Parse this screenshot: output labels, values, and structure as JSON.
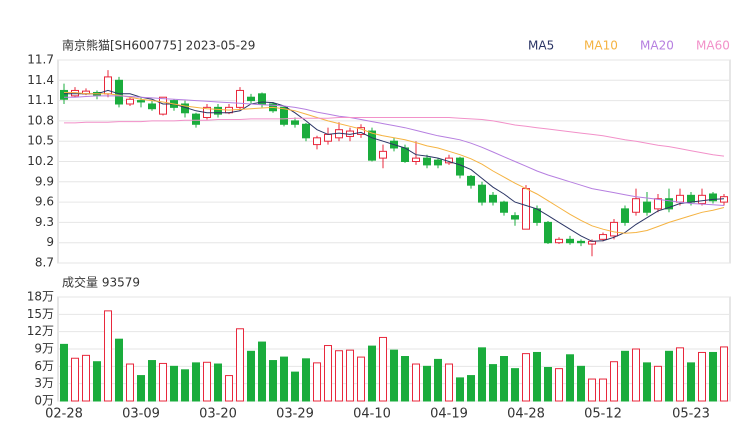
{
  "chart_data": [
    {
      "type": "candlestick",
      "title": "南京熊猫[SH600775] 2023-05-29",
      "up_color": "#e8283c",
      "down_color": "#1aac3c",
      "grid": true,
      "categories": [
        "02-28",
        null,
        null,
        null,
        null,
        null,
        null,
        "03-09",
        null,
        null,
        null,
        null,
        null,
        null,
        "03-20",
        null,
        null,
        null,
        null,
        null,
        null,
        "03-29",
        null,
        null,
        null,
        null,
        null,
        null,
        "04-10",
        null,
        null,
        null,
        null,
        null,
        null,
        "04-19",
        null,
        null,
        null,
        null,
        null,
        null,
        "04-28",
        null,
        null,
        null,
        null,
        null,
        null,
        "05-12",
        null,
        null,
        null,
        null,
        null,
        null,
        null,
        "05-23",
        null,
        null,
        null
      ],
      "open": [
        11.25,
        11.17,
        11.2,
        11.22,
        11.2,
        11.4,
        11.05,
        11.1,
        11.05,
        10.9,
        11.1,
        11.05,
        10.9,
        10.85,
        11.0,
        10.92,
        11.0,
        11.15,
        11.2,
        11.05,
        11.0,
        10.8,
        10.75,
        10.45,
        10.5,
        10.55,
        10.57,
        10.6,
        10.65,
        10.25,
        10.5,
        10.4,
        10.2,
        10.25,
        10.22,
        10.18,
        10.25,
        9.98,
        9.85,
        9.7,
        9.6,
        9.4,
        9.2,
        9.5,
        9.3,
        9.0,
        9.05,
        9.02,
        8.98,
        9.05,
        9.1,
        9.5,
        9.45,
        9.6,
        9.5,
        9.65,
        9.6,
        9.7,
        9.58,
        9.72,
        9.6
      ],
      "high": [
        11.35,
        11.3,
        11.28,
        11.25,
        11.55,
        11.45,
        11.15,
        11.15,
        11.1,
        11.15,
        11.12,
        11.1,
        10.92,
        11.05,
        11.05,
        11.05,
        11.3,
        11.2,
        11.22,
        11.08,
        11.02,
        10.85,
        10.77,
        10.58,
        10.7,
        10.78,
        10.7,
        10.75,
        10.7,
        10.45,
        10.55,
        10.45,
        10.5,
        10.3,
        10.25,
        10.3,
        10.27,
        10.0,
        9.9,
        9.75,
        9.62,
        9.45,
        9.85,
        9.55,
        9.32,
        9.08,
        9.1,
        9.05,
        9.05,
        9.15,
        9.35,
        9.55,
        9.8,
        9.75,
        9.72,
        9.8,
        9.8,
        9.75,
        9.8,
        9.75,
        9.72
      ],
      "low": [
        11.05,
        11.15,
        11.18,
        11.12,
        11.15,
        11.0,
        11.02,
        11.0,
        10.95,
        10.88,
        10.95,
        10.85,
        10.7,
        10.82,
        10.85,
        10.9,
        10.95,
        11.05,
        11.0,
        10.92,
        10.72,
        10.7,
        10.5,
        10.38,
        10.45,
        10.5,
        10.5,
        10.55,
        10.2,
        10.1,
        10.35,
        10.18,
        10.15,
        10.1,
        10.1,
        10.15,
        9.95,
        9.8,
        9.55,
        9.55,
        9.4,
        9.25,
        9.2,
        9.25,
        8.98,
        8.98,
        8.97,
        8.95,
        8.8,
        9.02,
        9.05,
        9.25,
        9.4,
        9.4,
        9.45,
        9.45,
        9.55,
        9.55,
        9.55,
        9.58,
        9.55
      ],
      "close": [
        11.12,
        11.25,
        11.24,
        11.18,
        11.45,
        11.05,
        11.12,
        11.08,
        10.98,
        11.15,
        11.0,
        10.92,
        10.75,
        11.0,
        10.9,
        11.0,
        11.25,
        11.1,
        11.05,
        10.95,
        10.75,
        10.75,
        10.55,
        10.55,
        10.6,
        10.67,
        10.65,
        10.7,
        10.22,
        10.35,
        10.4,
        10.2,
        10.25,
        10.15,
        10.15,
        10.25,
        10.0,
        9.85,
        9.6,
        9.6,
        9.45,
        9.35,
        9.8,
        9.3,
        9.0,
        9.05,
        9.0,
        9.0,
        9.02,
        9.12,
        9.3,
        9.3,
        9.65,
        9.45,
        9.65,
        9.5,
        9.7,
        9.6,
        9.7,
        9.62,
        9.68
      ],
      "series": [
        {
          "name": "MA5",
          "color": "#2b3565",
          "values": [
            11.2,
            11.2,
            11.2,
            11.2,
            11.25,
            11.2,
            11.2,
            11.15,
            11.12,
            11.05,
            11.05,
            11.0,
            10.95,
            10.92,
            10.92,
            10.92,
            10.95,
            11.05,
            11.08,
            11.07,
            11.02,
            10.92,
            10.8,
            10.67,
            10.6,
            10.62,
            10.6,
            10.63,
            10.55,
            10.5,
            10.45,
            10.4,
            10.3,
            10.28,
            10.25,
            10.2,
            10.15,
            10.08,
            9.95,
            9.82,
            9.72,
            9.6,
            9.55,
            9.5,
            9.4,
            9.3,
            9.2,
            9.1,
            9.02,
            9.03,
            9.08,
            9.15,
            9.27,
            9.37,
            9.47,
            9.52,
            9.58,
            9.6,
            9.62,
            9.64,
            9.65
          ]
        },
        {
          "name": "MA10",
          "color": "#f5b342",
          "values": [
            11.22,
            11.22,
            11.2,
            11.2,
            11.2,
            11.18,
            11.15,
            11.12,
            11.1,
            11.08,
            11.05,
            11.02,
            11.0,
            10.98,
            10.97,
            10.96,
            10.97,
            10.98,
            10.99,
            11.0,
            10.98,
            10.95,
            10.9,
            10.85,
            10.8,
            10.76,
            10.72,
            10.68,
            10.62,
            10.58,
            10.55,
            10.52,
            10.48,
            10.43,
            10.4,
            10.35,
            10.3,
            10.24,
            10.16,
            10.06,
            9.97,
            9.88,
            9.8,
            9.72,
            9.62,
            9.52,
            9.42,
            9.33,
            9.25,
            9.2,
            9.16,
            9.14,
            9.15,
            9.18,
            9.24,
            9.3,
            9.35,
            9.4,
            9.45,
            9.48,
            9.52
          ]
        },
        {
          "name": "MA20",
          "color": "#b67fe0",
          "values": [
            11.15,
            11.15,
            11.16,
            11.17,
            11.17,
            11.17,
            11.16,
            11.15,
            11.14,
            11.13,
            11.12,
            11.11,
            11.1,
            11.09,
            11.08,
            11.07,
            11.06,
            11.05,
            11.04,
            11.03,
            11.02,
            11.0,
            10.97,
            10.93,
            10.9,
            10.87,
            10.85,
            10.82,
            10.79,
            10.76,
            10.73,
            10.7,
            10.66,
            10.62,
            10.58,
            10.55,
            10.52,
            10.47,
            10.41,
            10.34,
            10.27,
            10.2,
            10.13,
            10.06,
            10.0,
            9.95,
            9.9,
            9.85,
            9.8,
            9.77,
            9.74,
            9.71,
            9.68,
            9.66,
            9.64,
            9.62,
            9.6,
            9.58,
            9.57,
            9.56,
            9.55
          ]
        },
        {
          "name": "MA60",
          "color": "#f291c9",
          "values": [
            10.77,
            10.77,
            10.78,
            10.78,
            10.78,
            10.79,
            10.79,
            10.79,
            10.8,
            10.8,
            10.8,
            10.81,
            10.81,
            10.81,
            10.82,
            10.82,
            10.82,
            10.83,
            10.83,
            10.83,
            10.83,
            10.84,
            10.84,
            10.84,
            10.84,
            10.85,
            10.85,
            10.85,
            10.85,
            10.85,
            10.85,
            10.85,
            10.85,
            10.85,
            10.85,
            10.85,
            10.84,
            10.83,
            10.82,
            10.8,
            10.77,
            10.74,
            10.72,
            10.7,
            10.68,
            10.66,
            10.64,
            10.62,
            10.6,
            10.58,
            10.55,
            10.52,
            10.5,
            10.47,
            10.44,
            10.42,
            10.39,
            10.36,
            10.33,
            10.3,
            10.28
          ]
        }
      ],
      "ylim": [
        8.7,
        11.7
      ],
      "yticks": [
        8.7,
        9,
        9.3,
        9.6,
        9.9,
        10.2,
        10.5,
        10.8,
        11.1,
        11.4,
        11.7
      ]
    },
    {
      "type": "bar",
      "title": "成交量 93579",
      "values": [
        9.8,
        7.4,
        7.9,
        6.8,
        15.6,
        10.7,
        6.4,
        4.4,
        7.0,
        6.5,
        6.0,
        5.4,
        6.6,
        6.7,
        6.4,
        4.4,
        12.5,
        8.6,
        10.2,
        7.0,
        7.6,
        5.0,
        7.3,
        6.6,
        9.6,
        8.7,
        8.8,
        7.6,
        9.5,
        11.0,
        8.8,
        7.7,
        6.4,
        6.0,
        7.2,
        6.4,
        4.0,
        4.4,
        9.2,
        6.3,
        7.7,
        5.6,
        8.2,
        8.4,
        5.8,
        5.6,
        8.0,
        6.0,
        3.8,
        3.8,
        6.8,
        8.6,
        9.0,
        6.6,
        6.0,
        8.6,
        9.2,
        6.6,
        8.4,
        8.4,
        9.36
      ],
      "ylim": [
        0,
        18
      ],
      "yticks": [
        {
          "value": 0,
          "label": "0万"
        },
        {
          "value": 3,
          "label": "3万"
        },
        {
          "value": 6,
          "label": "6万"
        },
        {
          "value": 9,
          "label": "9万"
        },
        {
          "value": 12,
          "label": "12万"
        },
        {
          "value": 15,
          "label": "15万"
        },
        {
          "value": 18,
          "label": "18万"
        }
      ]
    }
  ]
}
